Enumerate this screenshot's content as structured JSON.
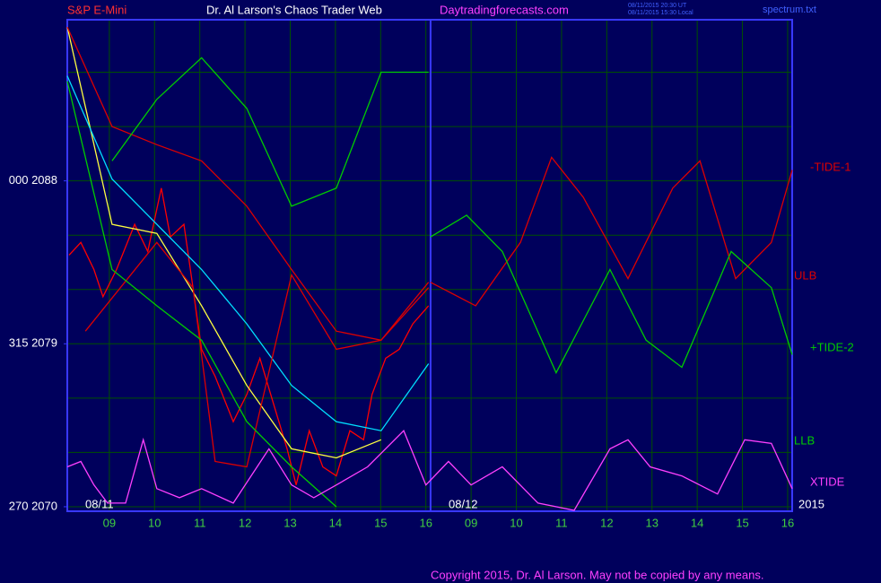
{
  "header": {
    "symbol": "S&P E-Mini",
    "site": "Dr. Al Larson's Chaos Trader Web",
    "url": "Daytradingforecasts.com",
    "timestamp_ut": "08/11/2015 20:30 UT",
    "timestamp_local": "08/11/2015 15:30 Local",
    "file": "spectrum.txt"
  },
  "chart_data": {
    "type": "line",
    "xlim": [
      -0.93,
      15.1
    ],
    "ylim": [
      2069.75,
      2096.9
    ],
    "xticks": [
      {
        "value": 0,
        "label": "09"
      },
      {
        "value": 1,
        "label": "10"
      },
      {
        "value": 2,
        "label": "11"
      },
      {
        "value": 3,
        "label": "12"
      },
      {
        "value": 4,
        "label": "13"
      },
      {
        "value": 5,
        "label": "14"
      },
      {
        "value": 6,
        "label": "15"
      },
      {
        "value": 7,
        "label": "16"
      },
      {
        "value": 8,
        "label": "09"
      },
      {
        "value": 9,
        "label": "10"
      },
      {
        "value": 10,
        "label": "11"
      },
      {
        "value": 11,
        "label": "12"
      },
      {
        "value": 12,
        "label": "13"
      },
      {
        "value": 13,
        "label": "14"
      },
      {
        "value": 14,
        "label": "15"
      },
      {
        "value": 15,
        "label": "16"
      }
    ],
    "yticks": [
      {
        "value": 2088,
        "label": "000  2088"
      },
      {
        "value": 2079,
        "label": "315  2079"
      },
      {
        "value": 2070,
        "label": "270  2070"
      }
    ],
    "ygrid": [
      2070,
      2073,
      2076,
      2079,
      2082,
      2085,
      2088,
      2091,
      2094
    ],
    "grid": true,
    "date_labels": [
      "08/11",
      "08/12",
      "2015"
    ],
    "annotations": [
      "ULB",
      "LLB"
    ],
    "series": [
      {
        "color": "#ff0000",
        "x": [
          -0.89,
          -0.63,
          -0.34,
          -0.14,
          0.16,
          0.56,
          0.85,
          1.15,
          1.35,
          1.65,
          1.85,
          2.04,
          2.34,
          2.74,
          3.04,
          3.33,
          3.63,
          3.93,
          4.13,
          4.42,
          4.72,
          5.02,
          5.32,
          5.62,
          5.81,
          6.11,
          6.41,
          6.71,
          7.06
        ],
        "values": [
          2083.9,
          2084.6,
          2083.1,
          2081.6,
          2083.1,
          2085.6,
          2084.1,
          2087.6,
          2084.9,
          2085.6,
          2082.1,
          2078.7,
          2077.2,
          2074.7,
          2076.2,
          2078.2,
          2075.7,
          2073.2,
          2071.2,
          2074.2,
          2072.2,
          2071.7,
          2074.2,
          2073.7,
          2076.2,
          2078.2,
          2078.7,
          2080.1,
          2081.1
        ]
      },
      {
        "color": "#ffff40",
        "x": [
          -0.93,
          0.06,
          1.05,
          2.04,
          3.04,
          4.03,
          5.02,
          6.01
        ],
        "values": [
          2096.5,
          2085.6,
          2085.1,
          2081.1,
          2076.7,
          2073.2,
          2072.7,
          2073.7
        ]
      },
      {
        "color": "#00e0ff",
        "x": [
          -0.93,
          0.06,
          1.05,
          2.04,
          3.04,
          4.03,
          5.02,
          6.01,
          7.06
        ],
        "values": [
          2093.8,
          2088.1,
          2085.6,
          2083.1,
          2080.1,
          2076.7,
          2074.7,
          2074.2,
          2077.9
        ]
      },
      {
        "color": "#dd0000",
        "x": [
          -0.93,
          0.06,
          1.05,
          2.04,
          3.04,
          4.03,
          5.02,
          6.01,
          7.06
        ],
        "values": [
          2096.5,
          2091.0,
          2090.0,
          2089.1,
          2086.6,
          2083.1,
          2079.7,
          2079.2,
          2082.1
        ]
      },
      {
        "color": "#dd0000",
        "x": [
          -0.53,
          1.05,
          1.85,
          2.34,
          3.04,
          4.03,
          5.02,
          6.01,
          7.06
        ],
        "values": [
          2079.7,
          2084.6,
          2082.1,
          2072.5,
          2072.2,
          2082.8,
          2078.7,
          2079.2,
          2082.4
        ]
      },
      {
        "color": "#00cc00",
        "x": [
          0.06,
          1.05,
          2.04,
          3.04,
          4.03,
          5.02,
          6.01,
          7.06
        ],
        "values": [
          2089.1,
          2092.5,
          2094.8,
          2092.0,
          2086.6,
          2087.6,
          2094.0,
          2094.0
        ]
      },
      {
        "color": "#00cc00",
        "x": [
          -0.93,
          0.06,
          1.05,
          2.04,
          3.04,
          4.03,
          5.02
        ],
        "values": [
          2093.5,
          2083.1,
          2081.1,
          2079.2,
          2074.7,
          2072.2,
          2070.0
        ]
      },
      {
        "name": "-TIDE-1",
        "color": "#dd0000",
        "x": [
          7.1,
          8.1,
          9.09,
          9.78,
          10.48,
          11.47,
          12.46,
          13.06,
          13.85,
          14.64,
          15.1
        ],
        "values": [
          2082.4,
          2081.1,
          2084.6,
          2089.3,
          2087.1,
          2082.6,
          2087.6,
          2089.1,
          2082.6,
          2084.6,
          2088.6
        ]
      },
      {
        "name": "+TIDE-2",
        "color": "#00cc00",
        "x": [
          7.1,
          7.9,
          8.69,
          9.88,
          11.07,
          11.87,
          12.66,
          13.75,
          14.64,
          15.1
        ],
        "values": [
          2084.9,
          2086.1,
          2084.1,
          2077.4,
          2083.1,
          2079.2,
          2077.7,
          2084.1,
          2082.1,
          2078.4
        ]
      },
      {
        "name": "XTIDE",
        "color": "#ff40ff",
        "x": [
          -0.93,
          -0.63,
          -0.34,
          -0.04,
          0.36,
          0.75,
          1.05,
          1.55,
          2.04,
          2.74,
          3.53,
          4.03,
          4.52,
          5.02,
          5.71,
          6.51,
          7.0,
          7.5,
          8.0,
          8.69,
          9.48,
          10.28,
          11.07,
          11.47,
          11.96,
          12.66,
          13.45,
          14.05,
          14.64,
          15.1
        ],
        "values": [
          2072.2,
          2072.5,
          2071.2,
          2070.2,
          2070.2,
          2073.7,
          2071.0,
          2070.5,
          2071.0,
          2070.2,
          2073.2,
          2071.2,
          2070.5,
          2071.2,
          2072.2,
          2074.2,
          2071.2,
          2072.5,
          2071.2,
          2072.2,
          2070.2,
          2069.8,
          2073.2,
          2073.7,
          2072.2,
          2071.7,
          2070.7,
          2073.7,
          2073.5,
          2071.0
        ]
      }
    ]
  },
  "footer": {
    "copyright": "Copyright 2015, Dr. Al Larson. May not be copied by any means."
  }
}
